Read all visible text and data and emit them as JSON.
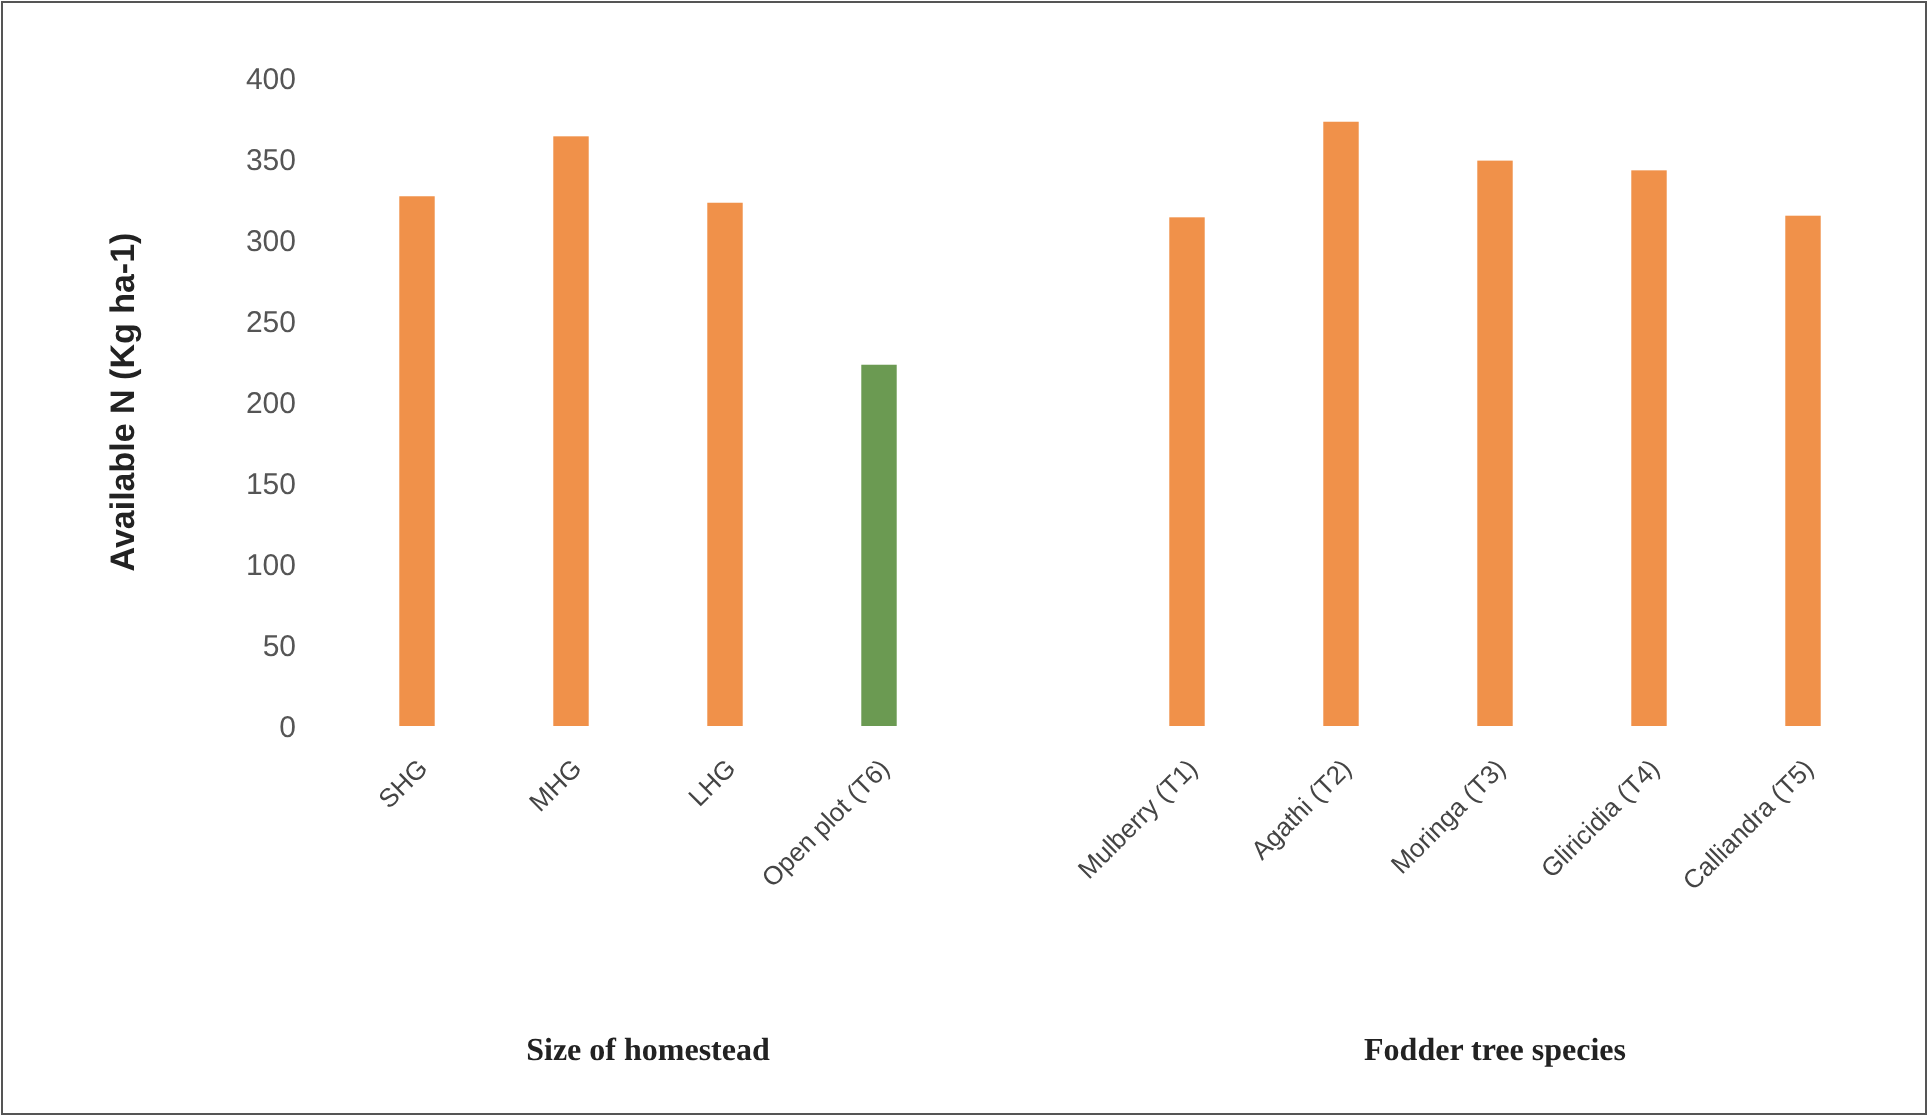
{
  "chart_data": {
    "type": "bar",
    "ylabel": "Available N (Kg ha-1)",
    "categories": [
      "SHG",
      "MHG",
      "LHG",
      "Open plot (T6)",
      null,
      "Mulberry (T1)",
      "Agathi (T2)",
      "Moringa (T3)",
      "Gliricidia (T4)",
      "Calliandra (T5)"
    ],
    "values": [
      327,
      364,
      323,
      223,
      null,
      314,
      373,
      349,
      343,
      315
    ],
    "colors": [
      "#f0914a",
      "#f0914a",
      "#f0914a",
      "#6b9a52",
      null,
      "#f0914a",
      "#f0914a",
      "#f0914a",
      "#f0914a",
      "#f0914a"
    ],
    "ylim": [
      0,
      400
    ],
    "yticks": [
      0,
      50,
      100,
      150,
      200,
      250,
      300,
      350,
      400
    ],
    "grid": false,
    "annotations": [
      "Size of homestead",
      "Fodder tree species"
    ]
  }
}
